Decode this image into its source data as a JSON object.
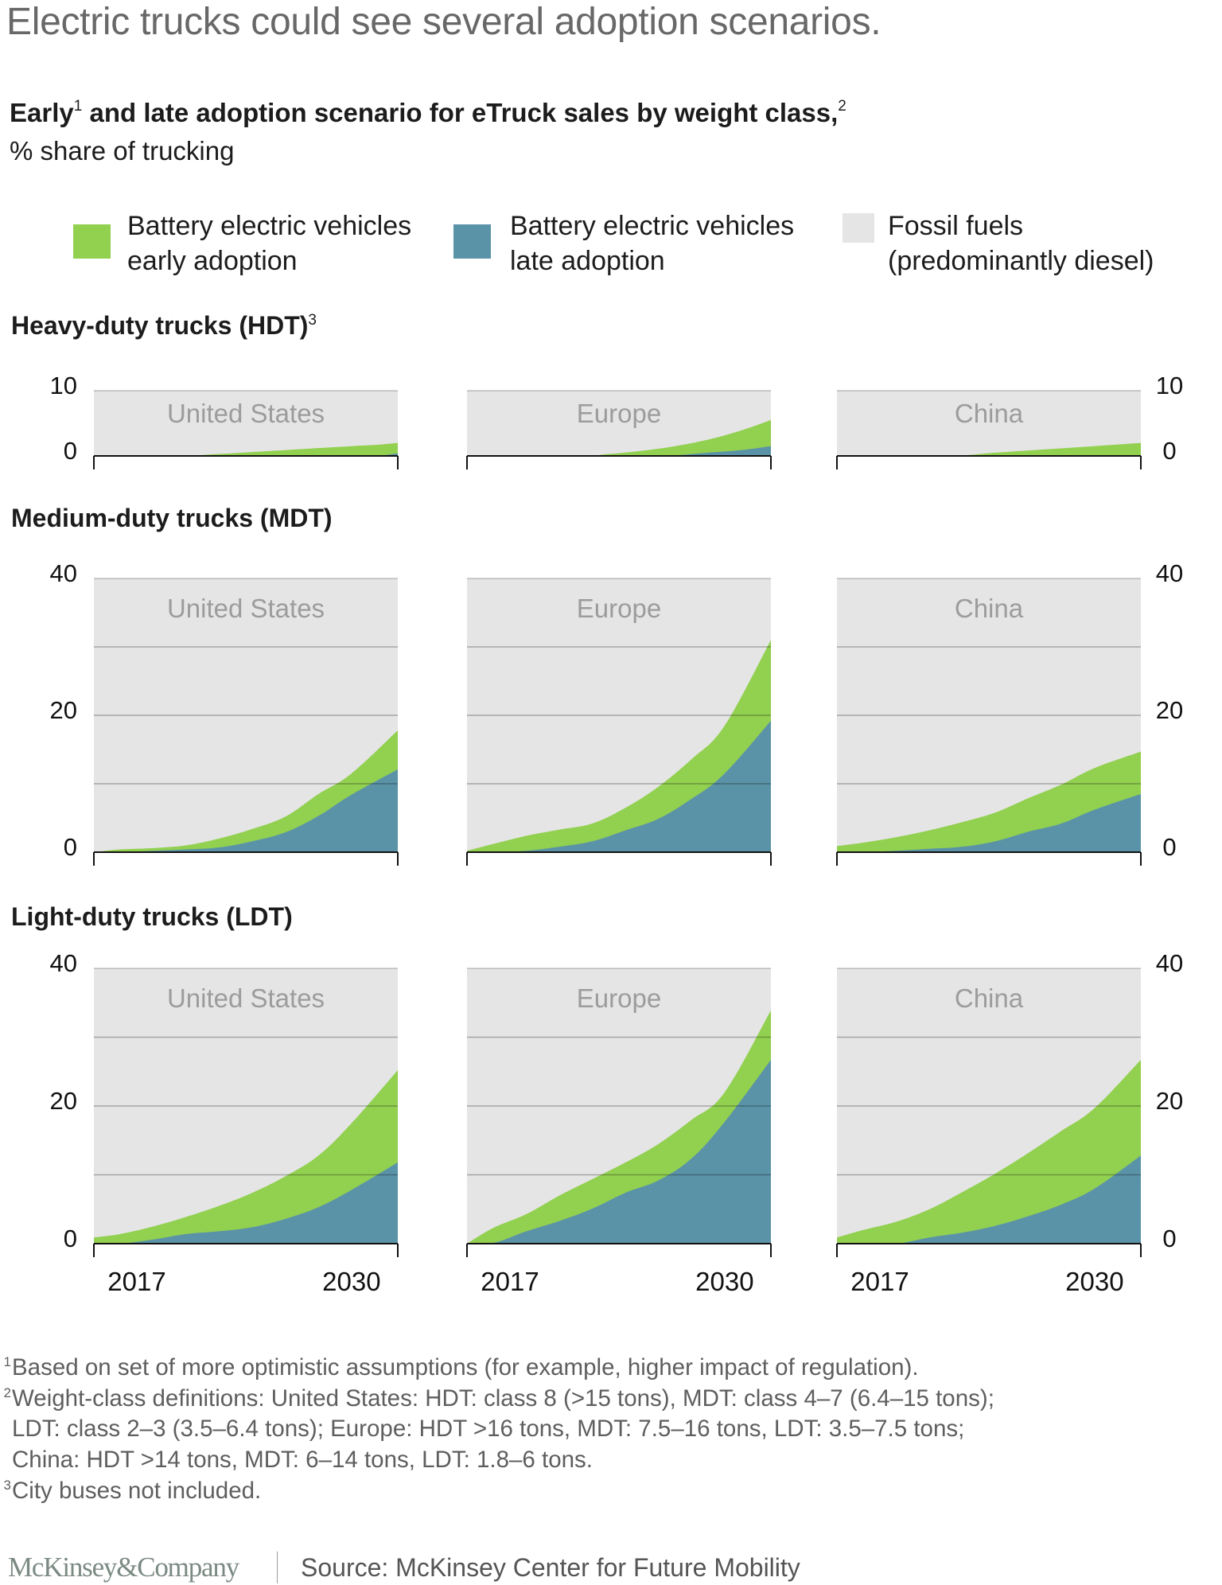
{
  "header": {
    "title": "Electric trucks could see several adoption scenarios.",
    "subtitle_part1": "Early",
    "subtitle_sup1": "1",
    "subtitle_part2": " and late adoption scenario for eTruck sales by weight class,",
    "subtitle_sup2": "2",
    "unit": "% share of trucking"
  },
  "legend": [
    {
      "line1": "Battery electric vehicles",
      "line2": "early adoption",
      "color": "#92d050",
      "icon": "square-swatch"
    },
    {
      "line1": "Battery electric vehicles",
      "line2": "late adoption",
      "color": "#5a93a7",
      "icon": "square-swatch"
    },
    {
      "line1": "Fossil fuels",
      "line2": "(predominantly diesel)",
      "color": "#e5e5e5",
      "icon": "square-swatch"
    }
  ],
  "sections": [
    {
      "heading": "Heavy-duty trucks (HDT)",
      "sup": "3"
    },
    {
      "heading": "Medium-duty trucks (MDT)",
      "sup": ""
    },
    {
      "heading": "Light-duty trucks (LDT)",
      "sup": ""
    }
  ],
  "colors": {
    "early": "#92d050",
    "late": "#5a93a7",
    "fossil": "#e5e5e5"
  },
  "chart_data": {
    "type": "area",
    "title": "Early and late adoption scenario for eTruck sales by weight class",
    "ylabel": "% share of trucking",
    "x_domain": [
      2014.4,
      2032.8
    ],
    "x_ticks": [
      2017,
      2030
    ],
    "x_tick_labels": [
      "2017",
      "2030"
    ],
    "grid": true,
    "legend_placement": "top",
    "series_names": [
      "Battery electric vehicles early adoption",
      "Battery electric vehicles late adoption",
      "Fossil fuels (predominantly diesel)"
    ],
    "panels": [
      {
        "section": "HDT",
        "region": "United States",
        "ylim": [
          0,
          10
        ],
        "y_ticks": [
          0,
          10
        ],
        "grid_values": [
          10
        ],
        "x": [
          2014.4,
          2019.5,
          2022,
          2024,
          2026,
          2028,
          2030,
          2031.5,
          2032.8
        ],
        "early": [
          0,
          0,
          0.3,
          0.6,
          0.9,
          1.2,
          1.5,
          1.7,
          2.0
        ],
        "late": [
          0,
          0,
          0,
          0,
          0,
          0,
          0,
          0,
          0.4
        ]
      },
      {
        "section": "HDT",
        "region": "Europe",
        "ylim": [
          0,
          10
        ],
        "y_ticks": [
          0,
          10
        ],
        "grid_values": [
          10
        ],
        "x": [
          2014.4,
          2021,
          2023,
          2025,
          2027,
          2029,
          2031,
          2032.8
        ],
        "early": [
          0,
          0,
          0.3,
          0.8,
          1.5,
          2.5,
          3.9,
          5.5
        ],
        "late": [
          0,
          0,
          0,
          0,
          0.1,
          0.5,
          0.9,
          1.5
        ]
      },
      {
        "section": "HDT",
        "region": "China",
        "ylim": [
          0,
          10
        ],
        "y_ticks": [
          0,
          10
        ],
        "grid_values": [
          10
        ],
        "x": [
          2014.4,
          2021,
          2024,
          2027,
          2030,
          2032.8
        ],
        "early": [
          0,
          0,
          0.5,
          1.0,
          1.5,
          2.0
        ],
        "late": [
          0,
          0,
          0,
          0,
          0,
          0
        ]
      },
      {
        "section": "MDT",
        "region": "United States",
        "ylim": [
          0,
          40
        ],
        "y_ticks": [
          0,
          20,
          40
        ],
        "grid_values": [
          10,
          20,
          30,
          40
        ],
        "x": [
          2014.4,
          2016,
          2018,
          2020,
          2022,
          2024,
          2026,
          2028,
          2030,
          2032.8
        ],
        "early": [
          0,
          0.4,
          0.6,
          1.0,
          2.0,
          3.4,
          5.2,
          8.5,
          11.5,
          17.8
        ],
        "late": [
          0,
          0,
          0.2,
          0.4,
          0.7,
          1.6,
          2.9,
          5.3,
          8.4,
          12.1
        ]
      },
      {
        "section": "MDT",
        "region": "Europe",
        "ylim": [
          0,
          40
        ],
        "y_ticks": [
          0,
          20,
          40
        ],
        "grid_values": [
          10,
          20,
          30,
          40
        ],
        "x": [
          2014.4,
          2016,
          2018,
          2020,
          2022,
          2024,
          2026,
          2028,
          2030,
          2032.8
        ],
        "early": [
          0.2,
          1.2,
          2.4,
          3.3,
          4.2,
          6.5,
          9.6,
          13.6,
          18.5,
          31.0
        ],
        "late": [
          0,
          0,
          0.2,
          0.8,
          1.6,
          3.2,
          4.9,
          7.8,
          11.5,
          19.2
        ]
      },
      {
        "section": "MDT",
        "region": "China",
        "ylim": [
          0,
          40
        ],
        "y_ticks": [
          0,
          20,
          40
        ],
        "grid_values": [
          10,
          20,
          30,
          40
        ],
        "x": [
          2014.4,
          2016,
          2018,
          2020,
          2022,
          2024,
          2026,
          2028,
          2030,
          2032.8
        ],
        "early": [
          0.9,
          1.4,
          2.2,
          3.2,
          4.4,
          5.8,
          7.9,
          9.9,
          12.3,
          14.7
        ],
        "late": [
          0,
          0,
          0.2,
          0.5,
          0.8,
          1.6,
          3.0,
          4.2,
          6.2,
          8.5
        ]
      },
      {
        "section": "LDT",
        "region": "United States",
        "ylim": [
          0,
          40
        ],
        "y_ticks": [
          0,
          20,
          40
        ],
        "grid_values": [
          10,
          20,
          30,
          40
        ],
        "x": [
          2014.4,
          2016,
          2018,
          2020,
          2022,
          2024,
          2026,
          2028,
          2030,
          2032.8
        ],
        "early": [
          0.9,
          1.4,
          2.5,
          3.9,
          5.5,
          7.4,
          9.8,
          12.8,
          17.5,
          25.2
        ],
        "late": [
          0,
          0,
          0.6,
          1.4,
          1.8,
          2.4,
          3.6,
          5.3,
          7.8,
          11.8
        ]
      },
      {
        "section": "LDT",
        "region": "Europe",
        "ylim": [
          0,
          40
        ],
        "y_ticks": [
          0,
          20,
          40
        ],
        "grid_values": [
          10,
          20,
          30,
          40
        ],
        "x": [
          2014.4,
          2016,
          2018,
          2020,
          2022,
          2024,
          2026,
          2028,
          2030,
          2032.8
        ],
        "early": [
          0,
          2.3,
          4.3,
          7.0,
          9.4,
          11.8,
          14.5,
          18.0,
          22.0,
          33.9
        ],
        "late": [
          0,
          0.1,
          1.8,
          3.3,
          5.1,
          7.4,
          9.2,
          12.4,
          17.7,
          26.7
        ]
      },
      {
        "section": "LDT",
        "region": "China",
        "ylim": [
          0,
          40
        ],
        "y_ticks": [
          0,
          20,
          40
        ],
        "grid_values": [
          10,
          20,
          30,
          40
        ],
        "x": [
          2014.4,
          2016,
          2018,
          2020,
          2022,
          2024,
          2026,
          2028,
          2030,
          2032.8
        ],
        "early": [
          0.9,
          2.0,
          3.2,
          5.0,
          7.5,
          10.2,
          13.2,
          16.4,
          19.7,
          26.7
        ],
        "late": [
          0,
          0,
          0,
          0.9,
          1.6,
          2.6,
          4.0,
          5.7,
          8.0,
          12.8
        ]
      }
    ]
  },
  "footnotes": [
    {
      "sup": "1",
      "text": "Based on set of more optimistic assumptions (for example, higher impact of regulation)."
    },
    {
      "sup": "2",
      "text": "Weight-class definitions: United States: HDT: class 8 (>15 tons), MDT: class 4–7 (6.4–15 tons);"
    },
    {
      "sup": "",
      "text": "LDT: class 2–3 (3.5–6.4 tons); Europe: HDT >16 tons, MDT: 7.5–16 tons, LDT: 3.5–7.5 tons;"
    },
    {
      "sup": "",
      "text": "China: HDT >14 tons, MDT: 6–14 tons, LDT: 1.8–6 tons."
    },
    {
      "sup": "3",
      "text": "City buses not included."
    }
  ],
  "footer": {
    "logo": "McKinsey&Company",
    "source": "Source: McKinsey Center for Future Mobility"
  }
}
